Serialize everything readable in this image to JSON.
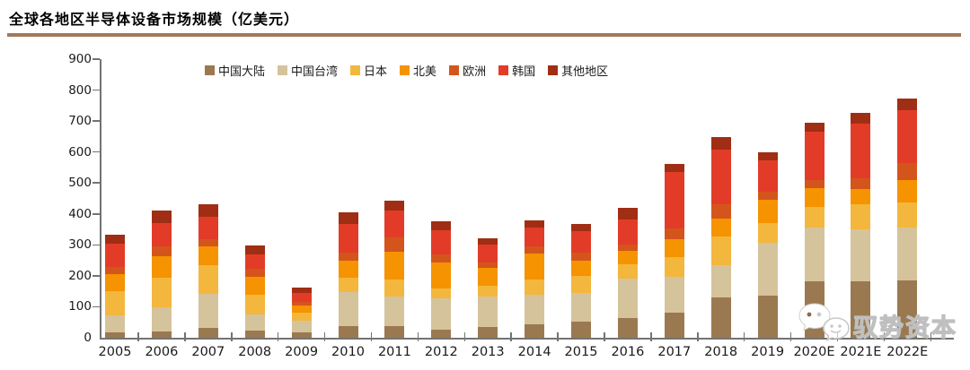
{
  "header": {
    "title": "全球各地区半导体设备市场规模（亿美元）"
  },
  "watermark": {
    "text": "驭势资本",
    "icons": [
      "wechat-bubble-icon",
      "wechat-bubble-outline-icon"
    ]
  },
  "colors": {
    "title_rule": "#A1795A",
    "axis": "#737373",
    "text": "#1a1a1a"
  },
  "chart_data": {
    "type": "bar",
    "subtype": "stacked",
    "title": "全球各地区半导体设备市场规模（亿美元）",
    "unit": "亿美元",
    "grid": false,
    "legend_position": "top",
    "ylim": [
      0,
      900
    ],
    "y_ticks": [
      0,
      100,
      200,
      300,
      400,
      500,
      600,
      700,
      800,
      900
    ],
    "categories": [
      "2005",
      "2006",
      "2007",
      "2008",
      "2009",
      "2010",
      "2011",
      "2012",
      "2013",
      "2014",
      "2015",
      "2016",
      "2017",
      "2018",
      "2019",
      "2020E",
      "2021E",
      "2022E"
    ],
    "series": [
      {
        "name": "中国大陆",
        "color": "#9B7950",
        "values": [
          17,
          20,
          32,
          22,
          16,
          37,
          37,
          27,
          34,
          44,
          51,
          64,
          82,
          131,
          135,
          181,
          183,
          185
        ]
      },
      {
        "name": "中国台湾",
        "color": "#D5C39C",
        "values": [
          56,
          78,
          110,
          52,
          38,
          112,
          95,
          100,
          100,
          95,
          93,
          126,
          115,
          102,
          171,
          176,
          168,
          171
        ]
      },
      {
        "name": "日本",
        "color": "#F3B73E",
        "values": [
          78,
          95,
          91,
          65,
          27,
          45,
          57,
          33,
          34,
          49,
          56,
          47,
          64,
          95,
          63,
          65,
          81,
          81
        ]
      },
      {
        "name": "北美",
        "color": "#F59300",
        "values": [
          55,
          71,
          62,
          59,
          24,
          56,
          88,
          84,
          57,
          83,
          49,
          44,
          56,
          58,
          78,
          61,
          49,
          73
        ]
      },
      {
        "name": "欧洲",
        "color": "#D4551C",
        "values": [
          24,
          31,
          23,
          24,
          12,
          26,
          47,
          26,
          19,
          24,
          27,
          20,
          37,
          44,
          25,
          26,
          34,
          54
        ]
      },
      {
        "name": "韩国",
        "color": "#E23C28",
        "values": [
          75,
          76,
          73,
          47,
          29,
          91,
          88,
          78,
          56,
          61,
          68,
          80,
          180,
          177,
          100,
          156,
          178,
          171
        ]
      },
      {
        "name": "其他地区",
        "color": "#A02E14",
        "values": [
          29,
          39,
          39,
          29,
          15,
          37,
          31,
          27,
          22,
          24,
          24,
          39,
          28,
          40,
          26,
          29,
          34,
          39
        ]
      }
    ]
  }
}
